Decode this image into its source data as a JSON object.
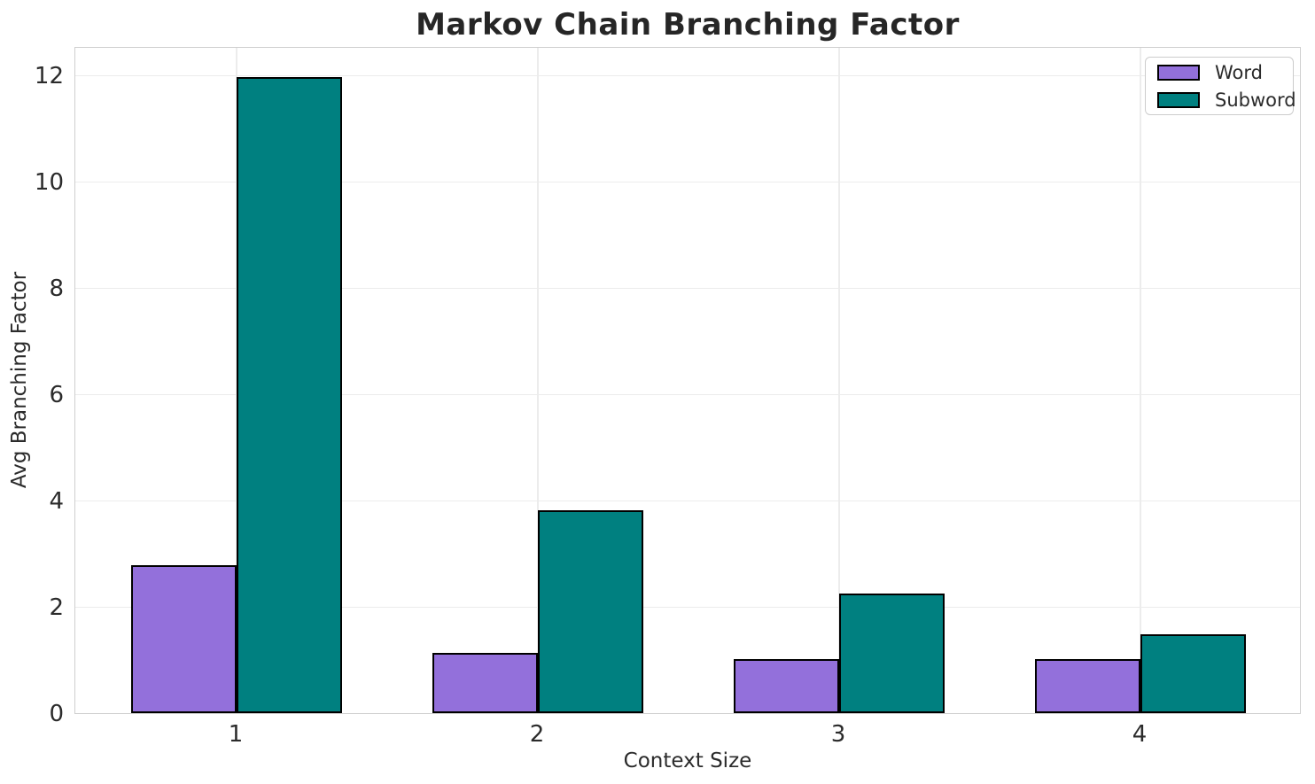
{
  "chart": {
    "title": "Markov Chain Branching Factor",
    "xlabel": "Context Size",
    "ylabel": "Avg Branching Factor"
  },
  "chart_data": {
    "type": "bar",
    "title": "Markov Chain Branching Factor",
    "xlabel": "Context Size",
    "ylabel": "Avg Branching Factor",
    "categories": [
      "1",
      "2",
      "3",
      "4"
    ],
    "series": [
      {
        "name": "Word",
        "color": "#9370db",
        "values": [
          2.78,
          1.13,
          1.01,
          1.01
        ]
      },
      {
        "name": "Subword",
        "color": "#008080",
        "values": [
          11.97,
          3.82,
          2.25,
          1.48
        ]
      }
    ],
    "yticks": [
      0,
      2,
      4,
      6,
      8,
      10,
      12
    ],
    "ylim": [
      0,
      12.55
    ],
    "grid": true,
    "grid_color": "#ececec",
    "spine_color": "#cfcfcf",
    "bar_edge_color": "#000000",
    "legend_position": "upper right"
  }
}
